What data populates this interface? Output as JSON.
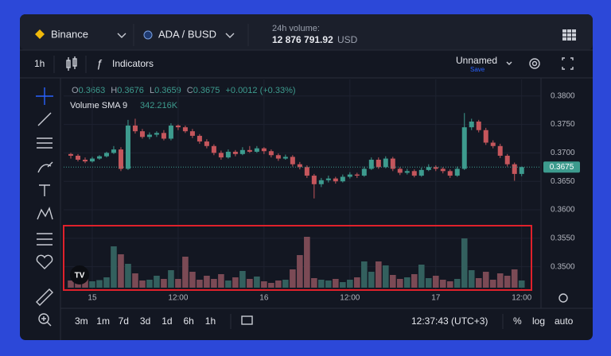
{
  "header": {
    "exchange": "Binance",
    "pair": "ADA / BUSD",
    "volume_label": "24h volume:",
    "volume_value": "12 876 791.92",
    "volume_unit": "USD"
  },
  "toolbar": {
    "interval": "1h",
    "indicators": "Indicators",
    "layout_name": "Unnamed",
    "save": "Save"
  },
  "legend": {
    "open_label": "O",
    "open": "0.3663",
    "high_label": "H",
    "high": "0.3676",
    "low_label": "L",
    "low": "0.3659",
    "close_label": "C",
    "close": "0.3675",
    "change": "+0.0012 (+0.33%)",
    "volume_indicator": "Volume SMA 9",
    "volume_indicator_value": "342.216K"
  },
  "chart_data": {
    "type": "candlestick",
    "x": [
      -3,
      -2,
      -1,
      0,
      1,
      2,
      3,
      4,
      5,
      6,
      7,
      8,
      9,
      10,
      11,
      12,
      13,
      14,
      15,
      16,
      17,
      18,
      19,
      20,
      21,
      22,
      23,
      24,
      25,
      26,
      27,
      28,
      29,
      30,
      31,
      32,
      33,
      34,
      35,
      36,
      37,
      38,
      39,
      40,
      41,
      42,
      43,
      44,
      45,
      46,
      47,
      48,
      49,
      50,
      51,
      52,
      53,
      54,
      55,
      56,
      57,
      58,
      59,
      60
    ],
    "open": [
      0.3698,
      0.3695,
      0.3688,
      0.3685,
      0.369,
      0.3694,
      0.37,
      0.3706,
      0.3672,
      0.3748,
      0.3738,
      0.3728,
      0.3732,
      0.3735,
      0.3725,
      0.3748,
      0.3745,
      0.3738,
      0.373,
      0.372,
      0.3712,
      0.37,
      0.3692,
      0.3702,
      0.3698,
      0.3705,
      0.3702,
      0.3708,
      0.3703,
      0.3696,
      0.369,
      0.3693,
      0.368,
      0.3675,
      0.366,
      0.3645,
      0.3652,
      0.3655,
      0.365,
      0.3658,
      0.3662,
      0.366,
      0.3672,
      0.3688,
      0.3675,
      0.369,
      0.3672,
      0.3665,
      0.3668,
      0.366,
      0.367,
      0.3675,
      0.3672,
      0.3668,
      0.366,
      0.3672,
      0.3745,
      0.3755,
      0.374,
      0.3718,
      0.3712,
      0.3695,
      0.368,
      0.3663
    ],
    "high": [
      0.37,
      0.3698,
      0.3692,
      0.3693,
      0.3696,
      0.3702,
      0.3712,
      0.371,
      0.3758,
      0.376,
      0.3742,
      0.3736,
      0.3738,
      0.374,
      0.3752,
      0.375,
      0.3748,
      0.3742,
      0.3733,
      0.3724,
      0.3715,
      0.3704,
      0.3706,
      0.3705,
      0.371,
      0.3712,
      0.3712,
      0.371,
      0.3706,
      0.3699,
      0.3697,
      0.3696,
      0.3684,
      0.3678,
      0.3663,
      0.3656,
      0.366,
      0.3658,
      0.3662,
      0.3666,
      0.3665,
      0.3676,
      0.3692,
      0.3692,
      0.3694,
      0.3693,
      0.3675,
      0.3672,
      0.3671,
      0.3674,
      0.368,
      0.3678,
      0.3675,
      0.3671,
      0.3676,
      0.377,
      0.376,
      0.3758,
      0.3744,
      0.3722,
      0.3716,
      0.3698,
      0.3683,
      0.3676
    ],
    "low": [
      0.369,
      0.3685,
      0.3682,
      0.3683,
      0.3688,
      0.3692,
      0.3698,
      0.3668,
      0.367,
      0.3734,
      0.3725,
      0.3724,
      0.3728,
      0.3722,
      0.3722,
      0.374,
      0.3735,
      0.3726,
      0.3716,
      0.3708,
      0.3696,
      0.3688,
      0.369,
      0.3694,
      0.3696,
      0.37,
      0.37,
      0.3698,
      0.3692,
      0.3686,
      0.3688,
      0.3676,
      0.3671,
      0.3656,
      0.362,
      0.364,
      0.3648,
      0.3646,
      0.3648,
      0.3655,
      0.3656,
      0.3658,
      0.367,
      0.3672,
      0.3673,
      0.3668,
      0.3661,
      0.3662,
      0.3657,
      0.3658,
      0.3668,
      0.3668,
      0.3664,
      0.3656,
      0.3658,
      0.367,
      0.374,
      0.3736,
      0.3714,
      0.3708,
      0.3691,
      0.3676,
      0.3651,
      0.3659
    ],
    "close": [
      0.3695,
      0.3688,
      0.3685,
      0.369,
      0.3694,
      0.37,
      0.3706,
      0.3672,
      0.3748,
      0.3738,
      0.3728,
      0.3732,
      0.3735,
      0.3725,
      0.3748,
      0.3745,
      0.3738,
      0.373,
      0.372,
      0.3712,
      0.37,
      0.3692,
      0.3702,
      0.3698,
      0.3705,
      0.3702,
      0.3708,
      0.3703,
      0.3696,
      0.369,
      0.3693,
      0.368,
      0.3675,
      0.366,
      0.3645,
      0.3652,
      0.3655,
      0.365,
      0.3658,
      0.3662,
      0.366,
      0.3672,
      0.3688,
      0.3675,
      0.369,
      0.3672,
      0.3665,
      0.3668,
      0.366,
      0.367,
      0.3675,
      0.3672,
      0.3668,
      0.366,
      0.3672,
      0.3745,
      0.3755,
      0.374,
      0.3718,
      0.3712,
      0.3695,
      0.368,
      0.3663,
      0.3675
    ],
    "volume": [
      90000,
      100000,
      110000,
      80000,
      95000,
      130000,
      520000,
      420000,
      300000,
      180000,
      90000,
      100000,
      150000,
      110000,
      220000,
      110000,
      390000,
      200000,
      100000,
      150000,
      110000,
      170000,
      90000,
      130000,
      210000,
      110000,
      140000,
      80000,
      60000,
      90000,
      100000,
      230000,
      410000,
      640000,
      120000,
      100000,
      90000,
      110000,
      70000,
      100000,
      130000,
      330000,
      200000,
      330000,
      280000,
      160000,
      110000,
      130000,
      170000,
      290000,
      120000,
      150000,
      100000,
      80000,
      110000,
      620000,
      220000,
      120000,
      200000,
      100000,
      180000,
      150000,
      230000,
      90000
    ],
    "up_color": "#3d9b8e",
    "down_color": "#c5565c",
    "volume_up_color": "#33605e",
    "volume_down_color": "#7b4a55",
    "last_price": 0.3675,
    "xlim": [
      -4,
      62.7
    ],
    "xticks": [
      {
        "value": 0,
        "label": "15"
      },
      {
        "value": 12,
        "label": "12:00"
      },
      {
        "value": 24,
        "label": "16"
      },
      {
        "value": 36,
        "label": "12:00"
      },
      {
        "value": 48,
        "label": "17"
      },
      {
        "value": 60,
        "label": "12:00"
      }
    ],
    "ylim": [
      0.3459,
      0.3829
    ],
    "yticks": [
      {
        "value": 0.38,
        "label": "0.3800"
      },
      {
        "value": 0.375,
        "label": "0.3750"
      },
      {
        "value": 0.37,
        "label": "0.3700"
      },
      {
        "value": 0.365,
        "label": "0.3650"
      },
      {
        "value": 0.36,
        "label": "0.3600"
      },
      {
        "value": 0.355,
        "label": "0.3550"
      },
      {
        "value": 0.35,
        "label": "0.3500"
      }
    ],
    "grid": true
  },
  "bottom_bar": {
    "ranges": [
      "3m",
      "1m",
      "7d",
      "3d",
      "1d",
      "6h",
      "1h"
    ],
    "clock": "12:37:43 (UTC+3)",
    "percent": "%",
    "log": "log",
    "auto": "auto"
  }
}
